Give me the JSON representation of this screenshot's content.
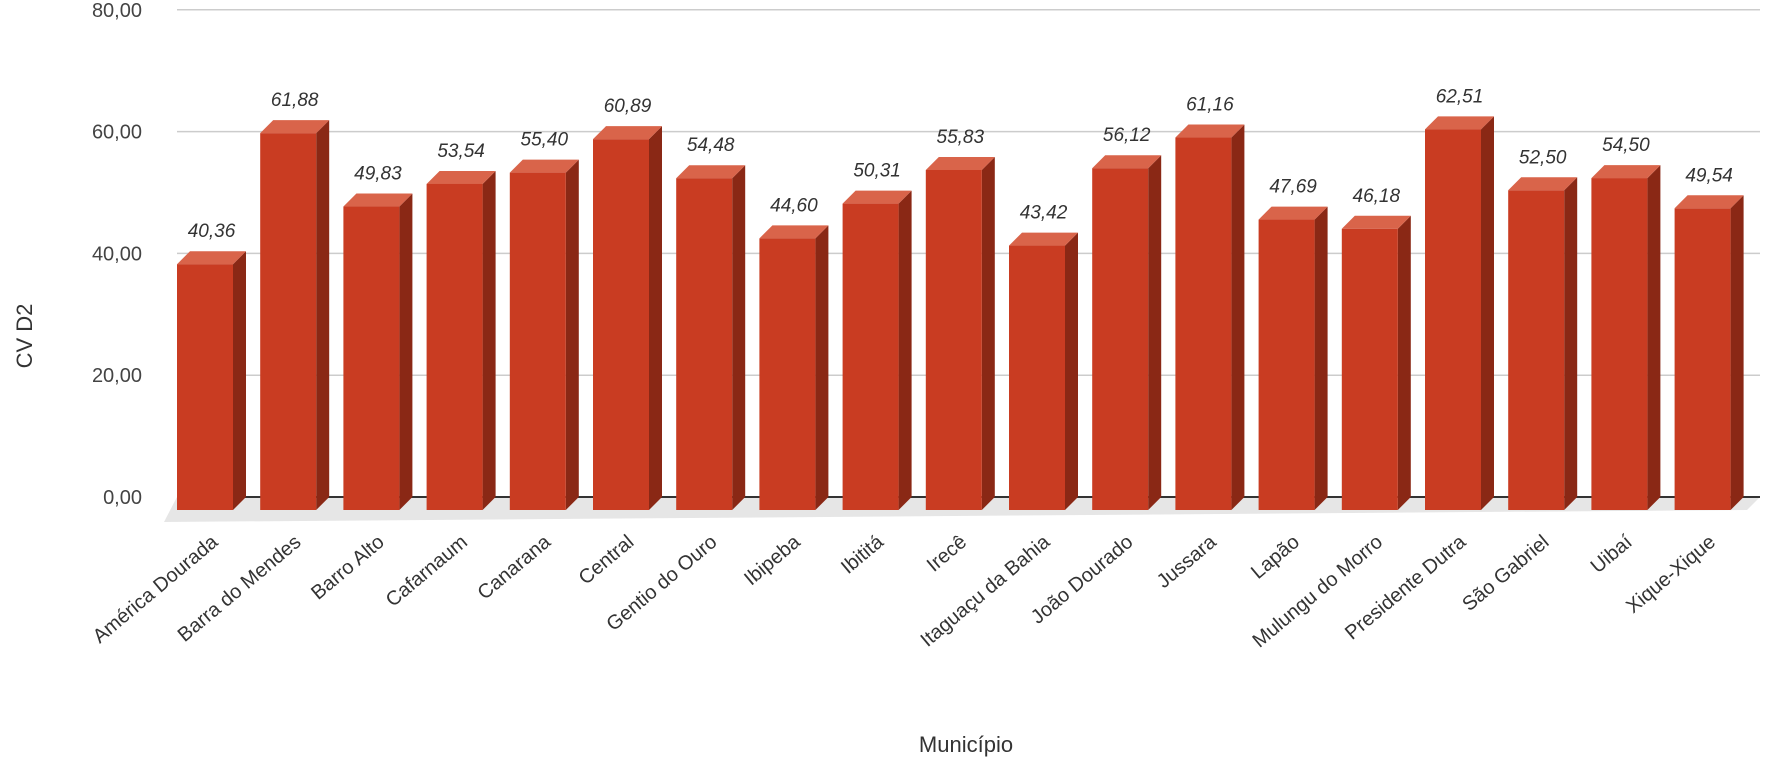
{
  "chart_data": {
    "type": "bar",
    "style": "3d",
    "title": "",
    "xlabel": "Município",
    "ylabel": "CV D2",
    "ylim": [
      0,
      80
    ],
    "y_ticks": [
      "0,00",
      "20,00",
      "40,00",
      "60,00",
      "80,00"
    ],
    "grid": true,
    "legend": "none",
    "colors": {
      "bar_front": "#c93c22",
      "bar_top": "#d9644a",
      "bar_side": "#8a2815",
      "floor": "#e6e6e6",
      "grid": "#cccccc"
    },
    "categories": [
      "América Dourada",
      "Barra do Mendes",
      "Barro Alto",
      "Cafarnaum",
      "Canarana",
      "Central",
      "Gentio do Ouro",
      "Ibipeba",
      "Ibititá",
      "Irecê",
      "Itaguaçu da Bahia",
      "João Dourado",
      "Jussara",
      "Lapão",
      "Mulungu do Morro",
      "Presidente Dutra",
      "São Gabriel",
      "Uibaí",
      "Xique-Xique"
    ],
    "values": [
      40.36,
      61.88,
      49.83,
      53.54,
      55.4,
      60.89,
      54.48,
      44.6,
      50.31,
      55.83,
      43.42,
      56.12,
      61.16,
      47.69,
      46.18,
      62.51,
      52.5,
      54.5,
      49.54
    ],
    "value_labels": [
      "40,36",
      "61,88",
      "49,83",
      "53,54",
      "55,40",
      "60,89",
      "54,48",
      "44,60",
      "50,31",
      "55,83",
      "43,42",
      "56,12",
      "61,16",
      "47,69",
      "46,18",
      "62,51",
      "52,50",
      "54,50",
      "49,54"
    ]
  }
}
